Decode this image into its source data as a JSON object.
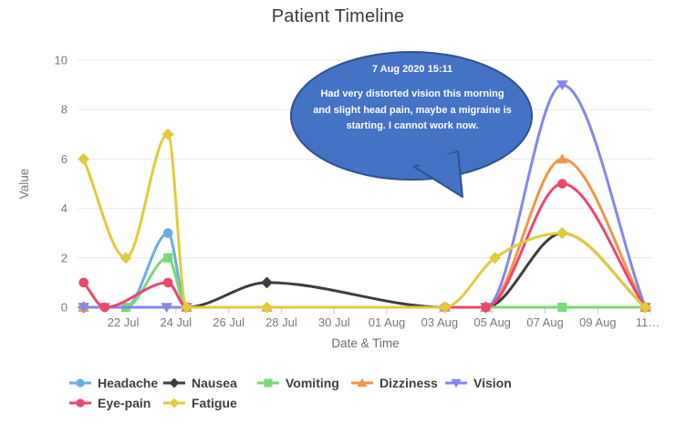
{
  "title": "Patient Timeline",
  "annotation": {
    "title": "7 Aug 2020 15:11",
    "text": "Had very distorted vision this morning and slight head pain, maybe a migraine is starting. I cannot work now.",
    "fill_color": "#4472C4",
    "border_color": "#2F528F",
    "text_color": "#FFFFFF"
  },
  "chart_data": {
    "type": "line",
    "title": "Patient Timeline",
    "xlabel": "Date & Time",
    "ylabel": "Value",
    "ylim": [
      0,
      10
    ],
    "y_ticks": [
      0,
      2,
      4,
      6,
      8,
      10
    ],
    "grid": "horizontal",
    "legend_position": "bottom",
    "x_note": "x is day index: 22 = 22 Jul 2020, 42 = 11 Aug 2020 (Aug d = 31+d)",
    "x_domain": [
      20.27,
      42.1
    ],
    "x_ticks": [
      {
        "v": 22,
        "label": "22 Jul"
      },
      {
        "v": 24,
        "label": "24 Jul"
      },
      {
        "v": 26,
        "label": "26 Jul"
      },
      {
        "v": 28,
        "label": "28 Jul"
      },
      {
        "v": 30,
        "label": "30 Jul"
      },
      {
        "v": 32,
        "label": "01 Aug"
      },
      {
        "v": 34,
        "label": "03 Aug"
      },
      {
        "v": 36,
        "label": "05 Aug"
      },
      {
        "v": 38,
        "label": "07 Aug"
      },
      {
        "v": 40,
        "label": "09 Aug"
      },
      {
        "v": 42,
        "label": "11…"
      }
    ],
    "series": [
      {
        "name": "Headache",
        "color": "#68AEDF",
        "marker": "circle",
        "points": [
          [
            20.5,
            0
          ],
          [
            22.1,
            0
          ],
          [
            23.7,
            3
          ],
          [
            24.4,
            0
          ],
          [
            41.8,
            0
          ]
        ]
      },
      {
        "name": "Nausea",
        "color": "#3D3D3D",
        "marker": "diamond",
        "points": [
          [
            20.5,
            0
          ],
          [
            24.4,
            0
          ],
          [
            27.45,
            1
          ],
          [
            34.2,
            0
          ],
          [
            35.75,
            0
          ],
          [
            38.65,
            3
          ],
          [
            41.8,
            0
          ]
        ]
      },
      {
        "name": "Vomiting",
        "color": "#79D977",
        "marker": "square",
        "points": [
          [
            20.5,
            0
          ],
          [
            22.1,
            0
          ],
          [
            23.7,
            2
          ],
          [
            24.4,
            0
          ],
          [
            35.75,
            0
          ],
          [
            38.65,
            0
          ],
          [
            41.8,
            0
          ]
        ]
      },
      {
        "name": "Dizziness",
        "color": "#F1954A",
        "marker": "triangle-up",
        "points": [
          [
            20.5,
            0
          ],
          [
            24.4,
            0
          ],
          [
            27.45,
            0
          ],
          [
            34.2,
            0
          ],
          [
            35.75,
            0
          ],
          [
            38.65,
            6
          ],
          [
            41.8,
            0
          ]
        ]
      },
      {
        "name": "Vision",
        "color": "#8487E9",
        "marker": "triangle-down",
        "points": [
          [
            20.5,
            0
          ],
          [
            21.3,
            0
          ],
          [
            23.65,
            0
          ],
          [
            24.4,
            0
          ],
          [
            35.75,
            0
          ],
          [
            38.65,
            9
          ],
          [
            41.8,
            0
          ]
        ]
      },
      {
        "name": "Eye-pain",
        "color": "#EC476F",
        "marker": "circle",
        "points": [
          [
            20.5,
            1
          ],
          [
            21.3,
            0
          ],
          [
            23.7,
            1
          ],
          [
            24.4,
            0
          ],
          [
            34.2,
            0
          ],
          [
            35.75,
            0
          ],
          [
            38.65,
            5
          ],
          [
            41.8,
            0
          ]
        ]
      },
      {
        "name": "Fatigue",
        "color": "#E0CB3C",
        "marker": "diamond",
        "points": [
          [
            20.5,
            6
          ],
          [
            22.1,
            2
          ],
          [
            23.7,
            7
          ],
          [
            24.4,
            0
          ],
          [
            27.45,
            0
          ],
          [
            34.2,
            0
          ],
          [
            36.1,
            2
          ],
          [
            38.65,
            3
          ],
          [
            41.8,
            0
          ]
        ]
      }
    ],
    "annotations": [
      {
        "date": "7 Aug 2020 15:11",
        "text": "Had very distorted vision this morning and slight head pain, maybe a migraine is starting. I cannot work now."
      }
    ]
  },
  "colors": {
    "grid": "#e9e9e9",
    "tick_mark": "#cccccc",
    "axis_text": "#787878",
    "title_text": "#3a3a3a",
    "legend_text": "#3f3f3f"
  }
}
